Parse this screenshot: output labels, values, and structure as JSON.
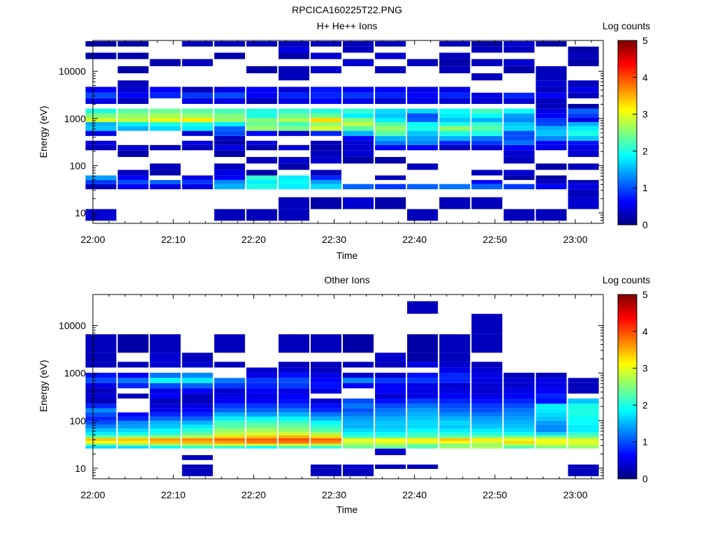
{
  "figure": {
    "title": "RPCICA160225T22.PNG"
  },
  "colormap": [
    "#00007f",
    "#0000ff",
    "#007fff",
    "#00ffff",
    "#7fff7f",
    "#ffff00",
    "#ff7f00",
    "#ff0000",
    "#7f0000"
  ],
  "chart_data": [
    {
      "type": "heatmap",
      "title": "H+ He++ Ions",
      "xlabel": "Time",
      "ylabel": "Energy (eV)",
      "colorbar_label": "Log counts",
      "colorbar_ticks": [
        "0",
        "1",
        "2",
        "3",
        "4",
        "5"
      ],
      "clim": [
        0,
        5
      ],
      "x_ticks": [
        "22:00",
        "22:10",
        "22:20",
        "22:30",
        "22:40",
        "22:50",
        "23:00"
      ],
      "y_ticks": [
        "10",
        "100",
        "1000",
        "10000"
      ],
      "y_scale": "log",
      "ylim": [
        6,
        45000
      ],
      "time_bins": [
        "22:01",
        "22:05",
        "22:09",
        "22:13",
        "22:17",
        "22:21",
        "22:25",
        "22:29",
        "22:33",
        "22:37",
        "22:41",
        "22:45",
        "22:49",
        "22:53",
        "22:57",
        "23:01"
      ],
      "energy_bins_eV": [
        8.5,
        17,
        27,
        37,
        45,
        55,
        70,
        95,
        130,
        180,
        250,
        300,
        380,
        480,
        620,
        760,
        920,
        1150,
        1450,
        1800,
        2300,
        3100,
        4000,
        5500,
        7500,
        11000,
        15000,
        22000,
        28000,
        40000
      ],
      "log_counts": [
        [
          0.4,
          0,
          0,
          0.3,
          0.9,
          1.4,
          0,
          0,
          0,
          0,
          0.3,
          0.5,
          0,
          0.5,
          1.6,
          1.5,
          2.9,
          2.5,
          2.0,
          0,
          0.5,
          1.0,
          0.6,
          0,
          0,
          0,
          0,
          0.2,
          0,
          0.2
        ],
        [
          0,
          0,
          0,
          0.6,
          1.0,
          0.6,
          0.3,
          0,
          0,
          0.2,
          0.4,
          0,
          0,
          0,
          1.5,
          1.8,
          2.8,
          2.6,
          2.3,
          0,
          0.3,
          0.6,
          0.4,
          0.3,
          0,
          0.2,
          0,
          0.2,
          0,
          0.2
        ],
        [
          0,
          0,
          0,
          0.5,
          1.1,
          0,
          0.2,
          0.3,
          0,
          0,
          0.3,
          0,
          0,
          0,
          1.7,
          2.0,
          3.0,
          2.7,
          2.4,
          0,
          0,
          0.8,
          0.6,
          0,
          0,
          0,
          0.2,
          0,
          0,
          0
        ],
        [
          0,
          0,
          0,
          0.5,
          0.9,
          0.5,
          0,
          0,
          0,
          0,
          0.3,
          0.5,
          0,
          0.4,
          1.8,
          2.0,
          3.2,
          2.6,
          2.3,
          0,
          0.5,
          0.9,
          0.3,
          0,
          0,
          0,
          0.3,
          0,
          0,
          0.3
        ],
        [
          0.3,
          0,
          0,
          1.5,
          1.3,
          0.6,
          0.5,
          0.3,
          0,
          0.2,
          0.5,
          0.2,
          0.3,
          1.0,
          1.1,
          1.8,
          2.6,
          2.5,
          2.2,
          0,
          0.5,
          1.0,
          0.5,
          0,
          0,
          0,
          0,
          0.2,
          0,
          0.3
        ],
        [
          0.3,
          0,
          0,
          2.0,
          1.8,
          2.1,
          0.2,
          0,
          0.3,
          0,
          0.2,
          0.5,
          0,
          0.6,
          2.6,
          2.4,
          2.5,
          2.0,
          2.0,
          0,
          0.3,
          0.6,
          0.6,
          0,
          0,
          0.2,
          0,
          0,
          0,
          0.3
        ],
        [
          0.3,
          0.3,
          0,
          1.8,
          1.9,
          1.8,
          0,
          0.2,
          0.4,
          0,
          0.4,
          0,
          0,
          0.4,
          2.5,
          2.2,
          2.7,
          2.4,
          2.1,
          0,
          0.5,
          0.8,
          0.4,
          0,
          0.3,
          0.3,
          0,
          0.2,
          0.5,
          0.3
        ],
        [
          0,
          0.2,
          0,
          1.7,
          1.4,
          0.8,
          0.3,
          0,
          0.4,
          0.3,
          0.2,
          0.3,
          0,
          0.8,
          2.9,
          2.6,
          3.3,
          2.4,
          2.0,
          0,
          0.6,
          0.8,
          0.7,
          0,
          0,
          0.4,
          0,
          0.4,
          0,
          0.3
        ],
        [
          0,
          0.4,
          0,
          1.1,
          0,
          0,
          0,
          0,
          0.2,
          0.4,
          0.4,
          0.4,
          0.6,
          1.5,
          2.3,
          2.8,
          2.5,
          1.8,
          2.1,
          0,
          0.5,
          0.9,
          0.6,
          0,
          0,
          0,
          0.4,
          0,
          0.3,
          0.3
        ],
        [
          0,
          0.2,
          0,
          0.9,
          0,
          0.3,
          0,
          0,
          0.2,
          0,
          0.6,
          1.2,
          1.5,
          2.3,
          2.6,
          2.3,
          1.8,
          1.6,
          1.7,
          0,
          0.4,
          0.8,
          0.6,
          0,
          0,
          0.3,
          0,
          0.4,
          0,
          0.3
        ],
        [
          0.3,
          0,
          0,
          1.1,
          0,
          0,
          0,
          0.3,
          0,
          0,
          0.6,
          1.3,
          1.4,
          1.6,
          2.0,
          1.9,
          1.1,
          1.0,
          1.7,
          0,
          0.5,
          0.6,
          0.5,
          0,
          0,
          0,
          0.3,
          0,
          0,
          0
        ],
        [
          0,
          0.3,
          0,
          1.2,
          0,
          0,
          0,
          0,
          0,
          0,
          0.3,
          0.8,
          1.5,
          2.0,
          2.6,
          2.0,
          1.6,
          1.8,
          1.9,
          0,
          0.4,
          0.8,
          0.5,
          0,
          0,
          0.3,
          0.2,
          0.3,
          0,
          0.3
        ],
        [
          0,
          0.3,
          0,
          1.1,
          0.6,
          0,
          0.3,
          0,
          0,
          0,
          0.4,
          0.9,
          1.2,
          2.0,
          2.3,
          2.1,
          1.5,
          1.9,
          2.2,
          0,
          0.4,
          0.5,
          0,
          0,
          0.3,
          0,
          0.3,
          0,
          0.3,
          0.2
        ],
        [
          0.3,
          0,
          0,
          0.9,
          0,
          0.2,
          0.4,
          0,
          0.3,
          0.4,
          0.6,
          1.2,
          1.0,
          1.0,
          1.7,
          1.6,
          1.3,
          1.4,
          1.9,
          0,
          0.4,
          0.8,
          0,
          0,
          0,
          0.2,
          0.4,
          0,
          0.3,
          0.4
        ],
        [
          0.3,
          0,
          0,
          0.6,
          0.3,
          0.2,
          0,
          0.2,
          0,
          0,
          0.5,
          0.6,
          1.3,
          1.6,
          1.5,
          1.0,
          0.9,
          0.6,
          0.5,
          0.3,
          0.3,
          0.6,
          0.3,
          0.4,
          0.3,
          0.3,
          0,
          0,
          0,
          0.2
        ],
        [
          0,
          0.4,
          0.3,
          0.5,
          0.3,
          0,
          0,
          0.3,
          0,
          0.4,
          0.5,
          0.7,
          1.6,
          2.0,
          1.8,
          1.5,
          0.5,
          0.9,
          1.1,
          0.2,
          0,
          0.3,
          0.5,
          0.3,
          0,
          0,
          0.2,
          0.3,
          0.2,
          0
        ]
      ]
    },
    {
      "type": "heatmap",
      "title": "Other Ions",
      "xlabel": "Time",
      "ylabel": "Energy (eV)",
      "colorbar_label": "Log counts",
      "colorbar_ticks": [
        "0",
        "1",
        "2",
        "3",
        "4",
        "5"
      ],
      "clim": [
        0,
        5
      ],
      "x_ticks": [
        "22:00",
        "22:10",
        "22:20",
        "22:30",
        "22:40",
        "22:50",
        "23:00"
      ],
      "y_ticks": [
        "10",
        "100",
        "1000",
        "10000"
      ],
      "y_scale": "log",
      "ylim": [
        6,
        45000
      ],
      "time_bins": [
        "22:01",
        "22:05",
        "22:09",
        "22:13",
        "22:17",
        "22:21",
        "22:25",
        "22:29",
        "22:33",
        "22:37",
        "22:41",
        "22:45",
        "22:49",
        "22:53",
        "22:57",
        "23:01"
      ],
      "energy_bins_eV": [
        8.5,
        11,
        13,
        17,
        21,
        24,
        28,
        31,
        35,
        40,
        46,
        53,
        62,
        75,
        90,
        110,
        135,
        165,
        200,
        260,
        330,
        420,
        550,
        700,
        900,
        1150,
        1500,
        2000,
        3600,
        12000,
        26000
      ],
      "log_counts": [
        [
          0,
          0,
          0,
          0,
          0,
          0,
          1.7,
          2.3,
          3.1,
          3.4,
          2.4,
          1.8,
          1.6,
          1.3,
          1.0,
          0.8,
          1.0,
          1.3,
          0.8,
          0.3,
          0.4,
          0.3,
          0.5,
          1.0,
          0.7,
          0,
          0.3,
          0.3,
          0.3,
          0,
          0
        ],
        [
          0,
          0,
          0,
          0,
          0,
          0,
          1.7,
          2.5,
          3.2,
          3.4,
          2.6,
          1.9,
          1.7,
          1.4,
          1.3,
          0.8,
          0.6,
          0,
          0,
          0,
          0.3,
          0,
          0.8,
          1.2,
          0.6,
          0,
          0.3,
          0,
          0.2,
          0,
          0
        ],
        [
          0,
          0,
          0,
          0,
          0,
          0,
          1.9,
          2.6,
          3.4,
          3.6,
          2.6,
          2.0,
          1.9,
          1.6,
          1.5,
          1.1,
          0.8,
          0.5,
          0.4,
          0.3,
          0.6,
          0.5,
          1.0,
          1.9,
          1.2,
          0,
          0.4,
          0.4,
          0.3,
          0,
          0
        ],
        [
          0.3,
          0.3,
          0,
          0.3,
          0,
          0,
          2.1,
          2.7,
          3.5,
          3.7,
          2.8,
          2.3,
          2.1,
          1.8,
          1.5,
          1.1,
          0.8,
          0.6,
          0.5,
          0.3,
          0.3,
          0.6,
          1.1,
          1.8,
          1.3,
          0,
          0.4,
          0.3,
          0,
          0,
          0
        ],
        [
          0,
          0,
          0,
          0,
          0,
          0,
          2.1,
          2.9,
          3.6,
          3.9,
          3.3,
          2.8,
          2.6,
          2.3,
          2.2,
          1.8,
          1.5,
          1.1,
          0.9,
          0.6,
          0.5,
          0.4,
          0.9,
          1.2,
          0,
          0,
          0.3,
          0,
          0.3,
          0,
          0
        ],
        [
          0,
          0,
          0,
          0,
          0,
          0,
          1.9,
          2.9,
          3.8,
          3.9,
          3.4,
          2.9,
          2.7,
          2.4,
          2.2,
          1.9,
          1.4,
          1.1,
          0.9,
          0.6,
          0.5,
          0.6,
          0.8,
          0.9,
          0.5,
          0.4,
          0,
          0,
          0,
          0,
          0
        ],
        [
          0,
          0,
          0,
          0,
          0,
          0,
          2.2,
          2.9,
          3.8,
          4.0,
          3.5,
          2.9,
          2.6,
          2.4,
          2.2,
          1.9,
          1.5,
          1.2,
          0.9,
          0.7,
          0.6,
          0.5,
          0.9,
          1.0,
          0.7,
          0.4,
          0.3,
          0,
          0.3,
          0,
          0
        ],
        [
          0.3,
          0.3,
          0,
          0,
          0,
          0,
          2.1,
          2.8,
          3.7,
          3.9,
          3.3,
          2.7,
          2.3,
          2.1,
          1.9,
          1.5,
          1.2,
          0.8,
          0.7,
          0.4,
          0,
          0.5,
          0.7,
          0.6,
          0.5,
          0.3,
          0.3,
          0,
          0.3,
          0,
          0
        ],
        [
          0.3,
          0.4,
          0,
          0,
          0,
          0,
          2.4,
          2.6,
          2.9,
          3.0,
          2.2,
          1.9,
          1.7,
          1.5,
          1.5,
          1.4,
          1.2,
          1.0,
          1.2,
          1.0,
          0,
          0,
          0.6,
          1.3,
          0.4,
          0,
          0.3,
          0,
          0.2,
          0,
          0
        ],
        [
          0,
          0.3,
          0,
          0,
          0.4,
          0.4,
          2.4,
          2.6,
          3.0,
          3.1,
          2.2,
          1.9,
          1.7,
          1.6,
          1.6,
          1.5,
          1.3,
          1.2,
          1.0,
          0.7,
          0.4,
          0.6,
          0.6,
          0.9,
          0.4,
          0,
          0.3,
          0.4,
          0,
          0,
          0
        ],
        [
          0,
          0.3,
          0,
          0,
          0,
          0,
          2.3,
          2.4,
          3.0,
          3.2,
          2.3,
          2.1,
          1.9,
          1.7,
          1.7,
          1.6,
          1.5,
          1.4,
          1.2,
          0.9,
          0.5,
          0.5,
          0.5,
          0.9,
          0.7,
          0,
          0.5,
          0.2,
          0.2,
          0,
          0.3
        ],
        [
          0,
          0,
          0,
          0,
          0,
          0,
          2.6,
          2.5,
          3.1,
          3.4,
          2.4,
          2.0,
          1.8,
          1.6,
          1.7,
          1.5,
          1.3,
          1.1,
          1.0,
          0.8,
          0.6,
          0.5,
          0.4,
          0.8,
          0.8,
          0.5,
          0.4,
          0.3,
          0.3,
          0,
          0
        ],
        [
          0,
          0,
          0,
          0,
          0,
          0,
          2.7,
          2.6,
          2.9,
          3.2,
          2.4,
          2.0,
          1.8,
          1.6,
          1.5,
          1.4,
          1.2,
          1.0,
          0.9,
          0.7,
          0.5,
          0.4,
          0.4,
          0.5,
          0.5,
          0.4,
          0.3,
          0,
          0.3,
          0.3,
          0
        ],
        [
          0,
          0,
          0,
          0,
          0,
          0,
          2.3,
          2.7,
          3.3,
          3.0,
          2.5,
          1.9,
          1.7,
          1.6,
          1.5,
          1.4,
          1.3,
          1.2,
          1.0,
          0.8,
          0.6,
          0.5,
          0.4,
          0.4,
          0.3,
          0,
          0,
          0,
          0,
          0,
          0
        ],
        [
          0,
          0,
          0,
          0,
          0,
          0,
          2.5,
          2.8,
          3.1,
          3.0,
          2.4,
          1.7,
          1.3,
          1.3,
          1.4,
          1.6,
          1.7,
          1.8,
          1.8,
          0.7,
          0.8,
          0.6,
          0.5,
          0.5,
          0.3,
          0,
          0,
          0,
          0,
          0,
          0
        ],
        [
          0.3,
          0.3,
          0,
          0,
          0,
          0,
          2.6,
          2.8,
          3.0,
          2.9,
          2.4,
          2.1,
          1.8,
          1.8,
          1.9,
          1.9,
          2.0,
          2.0,
          2.0,
          1.6,
          0,
          0.3,
          0.3,
          0.3,
          0,
          0,
          0,
          0,
          0,
          0,
          0
        ]
      ]
    }
  ]
}
